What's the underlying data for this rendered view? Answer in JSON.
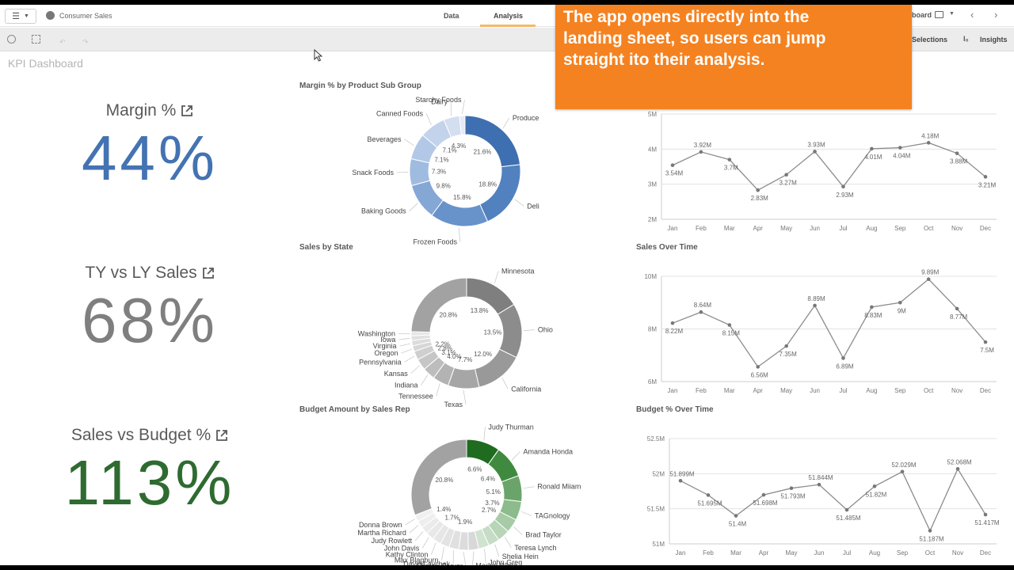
{
  "nav": {
    "app_name": "Consumer Sales",
    "tabs": [
      "Data",
      "Analysis"
    ],
    "right_label": "board",
    "toolbar_selections": "Selections",
    "toolbar_insights": "Insights"
  },
  "banner": {
    "lines": [
      "The app opens directly into the",
      "landing sheet, so users can jump",
      "straight ito their analysis."
    ]
  },
  "sheet": {
    "title": "KPI Dashboard"
  },
  "kpis": [
    {
      "label": "Margin %",
      "value": "44%",
      "color": "#4473b2"
    },
    {
      "label": "TY vs LY Sales",
      "value": "68%",
      "color": "#7f7f7f"
    },
    {
      "label": "Sales vs Budget %",
      "value": "113%",
      "color": "#2e6b30"
    }
  ],
  "chart_data": [
    {
      "type": "pie",
      "title": "Margin % by Product Sub Group",
      "categories": [
        "Produce",
        "Deli",
        "Frozen Foods",
        "Baking Goods",
        "Snack Foods",
        "Beverages",
        "Canned Foods",
        "Dairy",
        "Starchy Foods"
      ],
      "values": [
        21.6,
        18.8,
        15.8,
        9.8,
        7.3,
        7.1,
        7.1,
        4.3,
        1.5
      ],
      "slice_labels": [
        "21.6%",
        "18.8%",
        "15.8%",
        "9.8%",
        "7.3%",
        "7.1%",
        "7.1%",
        "4.3%",
        ""
      ],
      "colors": [
        "#3e6fb0",
        "#5181bf",
        "#6892ca",
        "#84a7d6",
        "#9fbbe0",
        "#b2c8e6",
        "#c3d3eb",
        "#d3def0",
        "#e3ebf6"
      ],
      "legend_position": "labels"
    },
    {
      "type": "pie",
      "title": "Sales by State",
      "categories": [
        "Minnesota",
        "Ohio",
        "California",
        "Texas",
        "Tennessee",
        "Indiana",
        "Kansas",
        "Pennsylvania",
        "Oregon",
        "Virginia",
        "Iowa",
        "Washington"
      ],
      "values": [
        13.8,
        13.5,
        12.0,
        7.7,
        4.0,
        3.1,
        2.8,
        2.2,
        1.4,
        1.3,
        1.2,
        1.0
      ],
      "slice_labels": [
        "13.8%",
        "13.5%",
        "12.0%",
        "7.7%",
        "4.0%",
        "3.1%",
        "2.8%",
        "2.2%",
        "",
        "",
        "",
        ""
      ],
      "other_value": 20.8,
      "other_label": "20.8%",
      "colors": [
        "#7f7f7f",
        "#8c8c8c",
        "#999999",
        "#a6a6a6",
        "#b3b3b3",
        "#bdbdbd",
        "#c6c6c6",
        "#cfcfcf",
        "#d6d6d6",
        "#dcdcdc",
        "#e1e1e1",
        "#e6e6e6"
      ],
      "other_color": "#a2a2a2"
    },
    {
      "type": "pie",
      "title": "Budget Amount by Sales Rep",
      "categories": [
        "Judy Thurman",
        "Amanda Honda",
        "Ronald Miiam",
        "TAGnology",
        "Brad Taylor",
        "Teresa Lynch",
        "Shelia Hein",
        "John Greg",
        "Marian White",
        "Sharon Carver",
        "David Laychak",
        "Max Blagburn",
        "Kathy Clinton",
        "John Davis",
        "Judy Rowlett",
        "Martha Richard",
        "Donna Brown"
      ],
      "values": [
        6.6,
        6.4,
        5.1,
        3.7,
        2.7,
        2.4,
        2.2,
        2.1,
        2.0,
        1.9,
        1.9,
        1.8,
        1.7,
        1.6,
        1.5,
        1.4,
        1.3
      ],
      "slice_labels": [
        "6.6%",
        "6.4%",
        "5.1%",
        "3.7%",
        "2.7%",
        "",
        "",
        "",
        "",
        "1.9%",
        "",
        "",
        "1.7%",
        "",
        "",
        "1.4%",
        ""
      ],
      "other_value": 20.8,
      "other_label": "20.8%",
      "colors": [
        "#1f6b1f",
        "#3f8a3f",
        "#6aa46a",
        "#8cbb8c",
        "#a6cba6",
        "#b8d5b8",
        "#c6dcc6",
        "#d0e3d0",
        "#d8d8d8",
        "#dcdcdc",
        "#e0e0e0",
        "#e3e3e3",
        "#e6e6e6",
        "#e8e8e8",
        "#ebebeb",
        "#eeeeee",
        "#f0f0f0"
      ],
      "other_color": "#a2a2a2"
    },
    {
      "type": "line",
      "title": "",
      "x": [
        "Jan",
        "Feb",
        "Mar",
        "Apr",
        "May",
        "Jun",
        "Jul",
        "Aug",
        "Sep",
        "Oct",
        "Nov",
        "Dec"
      ],
      "values": [
        3.54,
        3.92,
        3.7,
        2.83,
        3.27,
        3.93,
        2.93,
        4.01,
        4.04,
        4.18,
        3.88,
        3.21
      ],
      "value_labels": [
        "3.54M",
        "3.92M",
        "3.7M",
        "2.83M",
        "3.27M",
        "3.93M",
        "2.93M",
        "4.01M",
        "4.04M",
        "4.18M",
        "3.88M",
        "3.21M"
      ],
      "yticks": [
        "5M",
        "4M",
        "3M",
        "2M"
      ],
      "ytick_values": [
        5,
        4,
        3,
        2
      ],
      "ylim": [
        2,
        5
      ],
      "grid": true
    },
    {
      "type": "line",
      "title": "Sales Over Time",
      "x": [
        "Jan",
        "Feb",
        "Mar",
        "Apr",
        "May",
        "Jun",
        "Jul",
        "Aug",
        "Sep",
        "Oct",
        "Nov",
        "Dec"
      ],
      "values": [
        8.22,
        8.64,
        8.15,
        6.56,
        7.35,
        8.89,
        6.89,
        8.83,
        9.0,
        9.89,
        8.77,
        7.5
      ],
      "value_labels": [
        "8.22M",
        "8.64M",
        "8.15M",
        "6.56M",
        "7.35M",
        "8.89M",
        "6.89M",
        "8.83M",
        "9M",
        "9.89M",
        "8.77M",
        "7.5M"
      ],
      "yticks": [
        "10M",
        "8M",
        "6M"
      ],
      "ytick_values": [
        10,
        8,
        6
      ],
      "ylim": [
        6,
        10
      ],
      "grid": true
    },
    {
      "type": "line",
      "title": "Budget % Over Time",
      "x": [
        "Jan",
        "Feb",
        "Mar",
        "Apr",
        "May",
        "Jun",
        "Jul",
        "Aug",
        "Sep",
        "Oct",
        "Nov",
        "Dec"
      ],
      "values": [
        51.899,
        51.695,
        51.4,
        51.698,
        51.793,
        51.844,
        51.485,
        51.82,
        52.029,
        51.187,
        52.068,
        51.417
      ],
      "value_labels": [
        "51.899M",
        "51.695M",
        "51.4M",
        "51.698M",
        "51.793M",
        "51.844M",
        "51.485M",
        "51.82M",
        "52.029M",
        "51.187M",
        "52.068M",
        "51.417M"
      ],
      "yticks": [
        "52.5M",
        "52M",
        "51.5M",
        "51M"
      ],
      "ytick_values": [
        52.5,
        52,
        51.5,
        51
      ],
      "ylim": [
        51,
        52.5
      ],
      "grid": true
    }
  ]
}
